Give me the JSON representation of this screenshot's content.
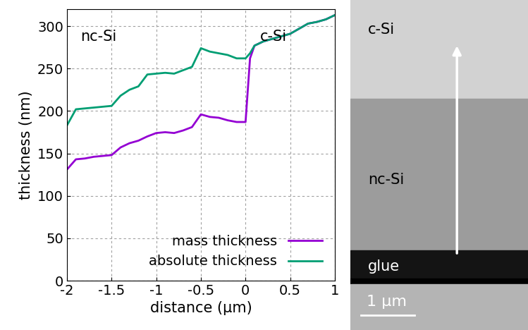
{
  "chart_data": {
    "type": "line",
    "x_label": "distance (µm)",
    "y_label": "thickness (nm)",
    "x": [
      -2,
      -1.9,
      -1.8,
      -1.7,
      -1.6,
      -1.5,
      -1.4,
      -1.3,
      -1.2,
      -1.1,
      -1.0,
      -0.9,
      -0.8,
      -0.7,
      -0.6,
      -0.5,
      -0.4,
      -0.3,
      -0.2,
      -0.1,
      0.0,
      0.05,
      0.1,
      0.2,
      0.3,
      0.4,
      0.5,
      0.6,
      0.7,
      0.8,
      0.9,
      1.0
    ],
    "series": [
      {
        "name": "mass thickness",
        "color": "#9400d3",
        "values": [
          131,
          143,
          144,
          146,
          147,
          148,
          157,
          162,
          165,
          170,
          174,
          175,
          174,
          177,
          181,
          196,
          193,
          192,
          189,
          187,
          187,
          262,
          277,
          282,
          285,
          288,
          291,
          297,
          303,
          305,
          308,
          313
        ]
      },
      {
        "name": "absolute thickness",
        "color": "#009e73",
        "values": [
          183,
          202,
          203,
          204,
          205,
          206,
          218,
          225,
          229,
          243,
          244,
          245,
          244,
          248,
          252,
          274,
          270,
          268,
          266,
          262,
          262,
          268,
          277,
          282,
          285,
          288,
          291,
          297,
          303,
          305,
          308,
          313
        ]
      }
    ],
    "xlim": [
      -2,
      1
    ],
    "xticks": [
      -2,
      -1.5,
      -1,
      -0.5,
      0,
      0.5,
      1
    ],
    "ylim": [
      0,
      320
    ],
    "yticks": [
      0,
      50,
      100,
      150,
      200,
      250,
      300
    ],
    "grid": true,
    "legend": "lower right",
    "annotations": [
      "nc-Si",
      "c-Si"
    ]
  },
  "micrograph": {
    "labels": [
      "c-Si",
      "nc-Si",
      "glue"
    ],
    "scale_bar": "1 µm"
  }
}
